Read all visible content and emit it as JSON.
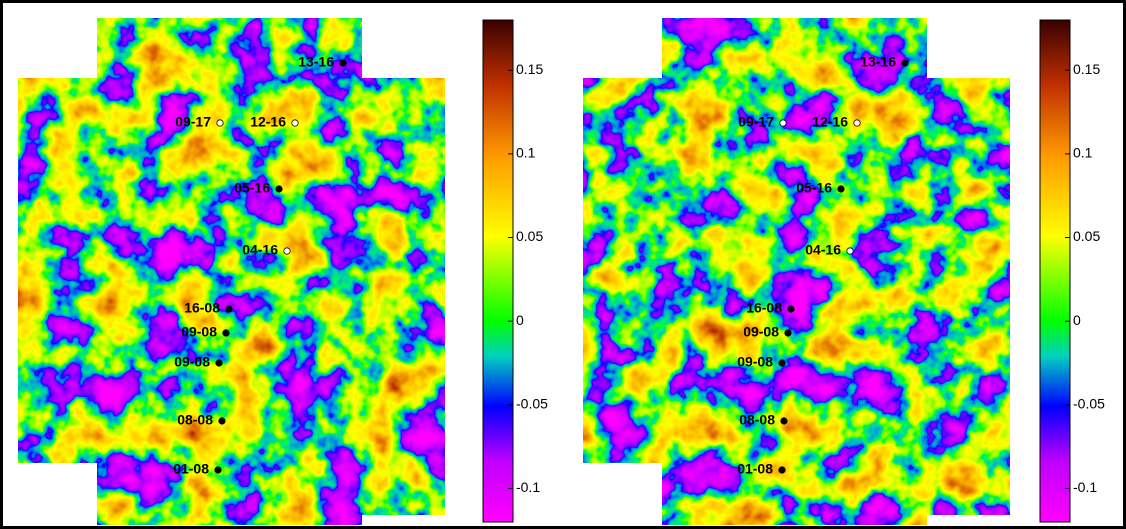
{
  "panels": [
    {
      "wells": [
        "13-16",
        "09-17",
        "12-16",
        "05-16",
        "04-16",
        "16-08",
        "09-08",
        "09-08",
        "08-08",
        "01-08"
      ],
      "markers": [
        "black",
        "white",
        "white",
        "black",
        "white",
        "black",
        "black",
        "black",
        "black",
        "black"
      ],
      "colorbar": {
        "range": [
          -0.12,
          0.18
        ],
        "ticks": [
          0.15,
          0.1,
          0.05,
          0,
          -0.05,
          -0.1
        ]
      }
    },
    {
      "wells": [
        "13-16",
        "09-17",
        "12-16",
        "05-16",
        "04-16",
        "16-08",
        "09-08",
        "09-08",
        "08-08",
        "01-08"
      ],
      "markers": [
        "black",
        "white",
        "white",
        "black",
        "white",
        "black",
        "black",
        "black",
        "black",
        "black"
      ],
      "colorbar": {
        "range": [
          -0.12,
          0.18
        ],
        "ticks": [
          0.15,
          0.1,
          0.05,
          0,
          -0.05,
          -0.1
        ]
      }
    }
  ]
}
